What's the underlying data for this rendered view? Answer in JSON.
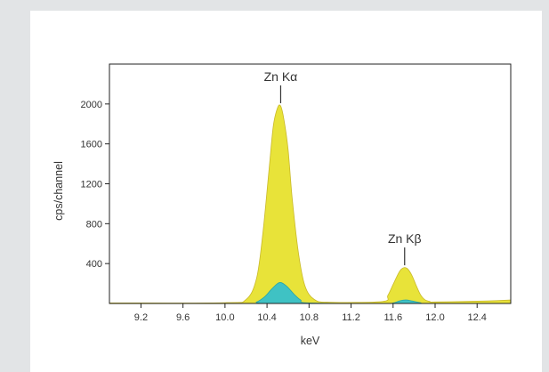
{
  "chart_data": {
    "type": "area",
    "title": "",
    "xlabel": "keV",
    "ylabel": "cps/channel",
    "xlim": [
      8.9,
      12.72
    ],
    "ylim": [
      0,
      2400
    ],
    "x_ticks": [
      9.2,
      9.6,
      10.0,
      10.4,
      10.8,
      11.2,
      11.6,
      12.0,
      12.4
    ],
    "x_tick_labels": [
      "9.2",
      "9.6",
      "10.0",
      "10.4",
      "10.8",
      "11.2",
      "11.6",
      "12.0",
      "12.4"
    ],
    "y_ticks": [
      400,
      800,
      1200,
      1600,
      2000
    ],
    "y_tick_labels": [
      "400",
      "800",
      "1200",
      "1600",
      "2000"
    ],
    "grid": false,
    "series": [
      {
        "color": "#e8e339",
        "x": [
          8.9,
          10.0,
          10.2,
          10.3,
          10.36,
          10.42,
          10.46,
          10.5,
          10.53,
          10.56,
          10.6,
          10.64,
          10.7,
          10.76,
          10.85,
          11.0,
          11.5,
          11.55,
          11.6,
          11.65,
          11.68,
          11.71,
          11.74,
          11.78,
          11.82,
          11.86,
          11.9,
          11.95,
          12.0,
          12.5,
          12.72
        ],
        "values": [
          5,
          8,
          40,
          250,
          700,
          1350,
          1780,
          1960,
          1980,
          1850,
          1550,
          1050,
          500,
          180,
          40,
          12,
          20,
          80,
          190,
          300,
          345,
          360,
          345,
          280,
          180,
          90,
          40,
          20,
          15,
          25,
          35
        ]
      },
      {
        "color": "#3fc2c4",
        "x": [
          8.9,
          10.2,
          10.3,
          10.38,
          10.44,
          10.5,
          10.53,
          10.56,
          10.6,
          10.66,
          10.72,
          10.8,
          11.5,
          11.6,
          11.66,
          11.72,
          11.78,
          11.86,
          11.95,
          12.72
        ],
        "values": [
          0,
          0,
          15,
          70,
          140,
          200,
          210,
          195,
          160,
          90,
          35,
          5,
          0,
          5,
          25,
          35,
          25,
          8,
          0,
          0
        ]
      }
    ],
    "annotations": [
      {
        "text": "Zn Kα",
        "x": 10.53,
        "y": 1990
      },
      {
        "text": "Zn Kβ",
        "x": 11.71,
        "y": 365
      }
    ]
  }
}
